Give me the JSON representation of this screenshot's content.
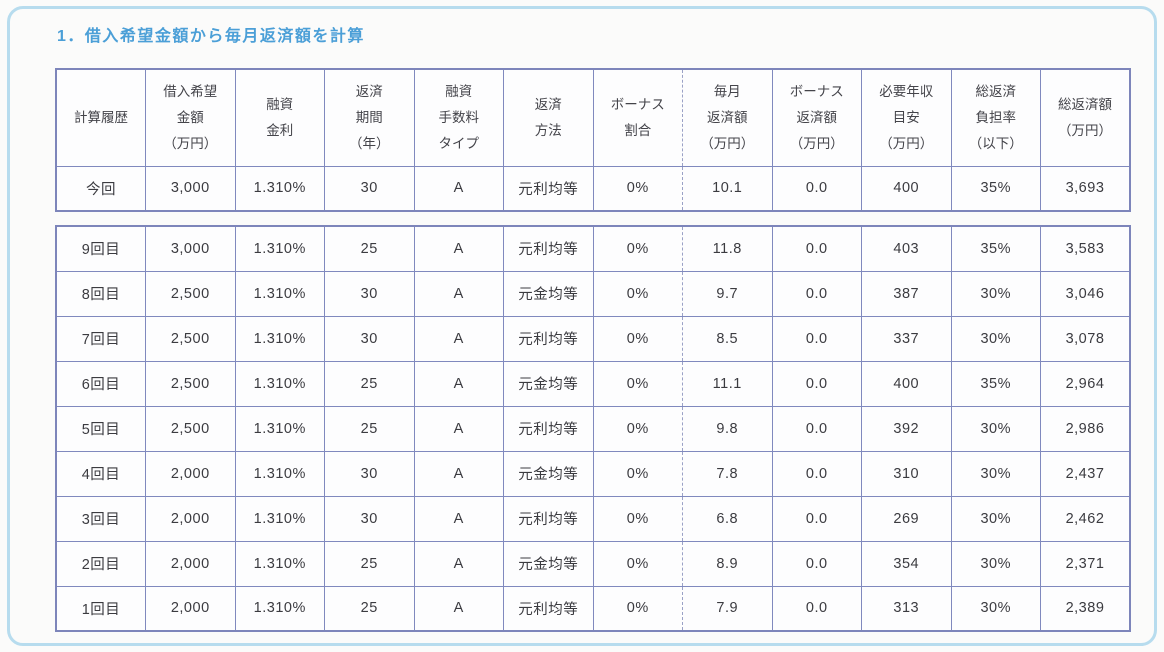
{
  "page": {
    "title": "1．借入希望金額から毎月返済額を計算"
  },
  "colors": {
    "accent_title_blue": "#4b9fd7",
    "frame_border_blue": "#b7dcee",
    "table_border_periwinkle": "#8089be"
  },
  "columns": [
    "計算履歴",
    "借入希望\n金額\n（万円）",
    "融資\n金利",
    "返済\n期間\n（年）",
    "融資\n手数料\nタイプ",
    "返済\n方法",
    "ボーナス\n割合",
    "毎月\n返済額\n（万円）",
    "ボーナス\n返済額\n（万円）",
    "必要年収\n目安\n（万円）",
    "総返済\n負担率\n（以下）",
    "総返済額\n（万円）"
  ],
  "current_table": {
    "rows": [
      [
        "今回",
        "3,000",
        "1.310%",
        "30",
        "A",
        "元利均等",
        "0%",
        "10.1",
        "0.0",
        "400",
        "35%",
        "3,693"
      ]
    ]
  },
  "history_table": {
    "rows": [
      [
        "9回目",
        "3,000",
        "1.310%",
        "25",
        "A",
        "元利均等",
        "0%",
        "11.8",
        "0.0",
        "403",
        "35%",
        "3,583"
      ],
      [
        "8回目",
        "2,500",
        "1.310%",
        "30",
        "A",
        "元金均等",
        "0%",
        "9.7",
        "0.0",
        "387",
        "30%",
        "3,046"
      ],
      [
        "7回目",
        "2,500",
        "1.310%",
        "30",
        "A",
        "元利均等",
        "0%",
        "8.5",
        "0.0",
        "337",
        "30%",
        "3,078"
      ],
      [
        "6回目",
        "2,500",
        "1.310%",
        "25",
        "A",
        "元金均等",
        "0%",
        "11.1",
        "0.0",
        "400",
        "35%",
        "2,964"
      ],
      [
        "5回目",
        "2,500",
        "1.310%",
        "25",
        "A",
        "元利均等",
        "0%",
        "9.8",
        "0.0",
        "392",
        "30%",
        "2,986"
      ],
      [
        "4回目",
        "2,000",
        "1.310%",
        "30",
        "A",
        "元金均等",
        "0%",
        "7.8",
        "0.0",
        "310",
        "30%",
        "2,437"
      ],
      [
        "3回目",
        "2,000",
        "1.310%",
        "30",
        "A",
        "元利均等",
        "0%",
        "6.8",
        "0.0",
        "269",
        "30%",
        "2,462"
      ],
      [
        "2回目",
        "2,000",
        "1.310%",
        "25",
        "A",
        "元金均等",
        "0%",
        "8.9",
        "0.0",
        "354",
        "30%",
        "2,371"
      ],
      [
        "1回目",
        "2,000",
        "1.310%",
        "25",
        "A",
        "元利均等",
        "0%",
        "7.9",
        "0.0",
        "313",
        "30%",
        "2,389"
      ]
    ]
  }
}
